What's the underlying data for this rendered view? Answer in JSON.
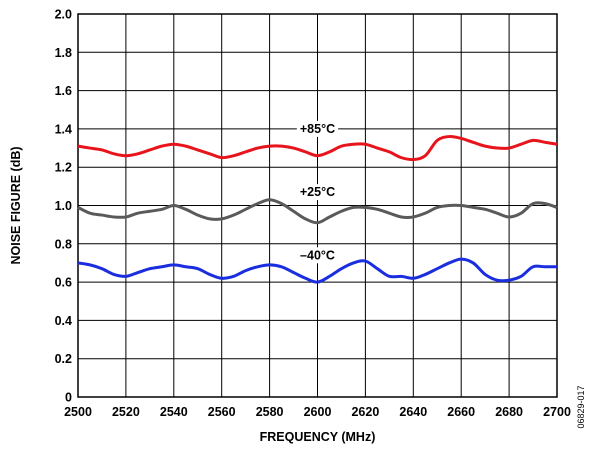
{
  "chart_data": {
    "type": "line",
    "xlabel": "FREQUENCY (MHz)",
    "ylabel": "NOISE FIGURE (dB)",
    "xlim": [
      2500,
      2700
    ],
    "ylim": [
      0,
      2.0
    ],
    "x_ticks": [
      2500,
      2520,
      2540,
      2560,
      2580,
      2600,
      2620,
      2640,
      2660,
      2680,
      2700
    ],
    "y_ticks": [
      "0",
      "0.2",
      "0.4",
      "0.6",
      "0.8",
      "1.0",
      "1.2",
      "1.4",
      "1.6",
      "1.8",
      "2.0"
    ],
    "grid": true,
    "figure_code": "06829-017",
    "series": [
      {
        "name": "+85°C",
        "color": "#e8141b",
        "label_at": [
          2600,
          1.4
        ],
        "x": [
          2500,
          2505,
          2510,
          2515,
          2520,
          2525,
          2530,
          2535,
          2540,
          2545,
          2550,
          2555,
          2560,
          2565,
          2570,
          2575,
          2580,
          2585,
          2590,
          2595,
          2600,
          2605,
          2610,
          2615,
          2620,
          2625,
          2630,
          2635,
          2640,
          2645,
          2650,
          2655,
          2660,
          2665,
          2670,
          2675,
          2680,
          2685,
          2690,
          2695,
          2700
        ],
        "values": [
          1.31,
          1.3,
          1.29,
          1.27,
          1.26,
          1.27,
          1.29,
          1.31,
          1.32,
          1.31,
          1.29,
          1.27,
          1.25,
          1.26,
          1.28,
          1.3,
          1.31,
          1.31,
          1.3,
          1.28,
          1.26,
          1.28,
          1.31,
          1.32,
          1.32,
          1.3,
          1.28,
          1.25,
          1.24,
          1.26,
          1.34,
          1.36,
          1.35,
          1.33,
          1.31,
          1.3,
          1.3,
          1.32,
          1.34,
          1.33,
          1.32
        ]
      },
      {
        "name": "+25°C",
        "color": "#5a5a5a",
        "label_at": [
          2600,
          1.07
        ],
        "x": [
          2500,
          2505,
          2510,
          2515,
          2520,
          2525,
          2530,
          2535,
          2540,
          2545,
          2550,
          2555,
          2560,
          2565,
          2570,
          2575,
          2580,
          2585,
          2590,
          2595,
          2600,
          2605,
          2610,
          2615,
          2620,
          2625,
          2630,
          2635,
          2640,
          2645,
          2650,
          2655,
          2660,
          2665,
          2670,
          2675,
          2680,
          2685,
          2690,
          2695,
          2700
        ],
        "values": [
          0.99,
          0.96,
          0.95,
          0.94,
          0.94,
          0.96,
          0.97,
          0.98,
          1.0,
          0.98,
          0.95,
          0.93,
          0.93,
          0.95,
          0.98,
          1.01,
          1.03,
          1.01,
          0.97,
          0.93,
          0.91,
          0.94,
          0.97,
          0.99,
          0.99,
          0.98,
          0.96,
          0.94,
          0.94,
          0.96,
          0.99,
          1.0,
          1.0,
          0.99,
          0.98,
          0.96,
          0.94,
          0.96,
          1.01,
          1.01,
          0.99
        ]
      },
      {
        "name": "–40°C",
        "color": "#1a2ee0",
        "label_at": [
          2600,
          0.74
        ],
        "x": [
          2500,
          2505,
          2510,
          2515,
          2520,
          2525,
          2530,
          2535,
          2540,
          2545,
          2550,
          2555,
          2560,
          2565,
          2570,
          2575,
          2580,
          2585,
          2590,
          2595,
          2600,
          2605,
          2610,
          2615,
          2620,
          2625,
          2630,
          2635,
          2640,
          2645,
          2650,
          2655,
          2660,
          2665,
          2670,
          2675,
          2680,
          2685,
          2690,
          2695,
          2700
        ],
        "values": [
          0.7,
          0.69,
          0.67,
          0.64,
          0.63,
          0.65,
          0.67,
          0.68,
          0.69,
          0.68,
          0.67,
          0.64,
          0.62,
          0.63,
          0.66,
          0.68,
          0.69,
          0.68,
          0.65,
          0.62,
          0.6,
          0.63,
          0.67,
          0.7,
          0.71,
          0.67,
          0.63,
          0.63,
          0.62,
          0.64,
          0.67,
          0.7,
          0.72,
          0.7,
          0.64,
          0.61,
          0.61,
          0.63,
          0.68,
          0.68,
          0.68
        ]
      }
    ]
  }
}
